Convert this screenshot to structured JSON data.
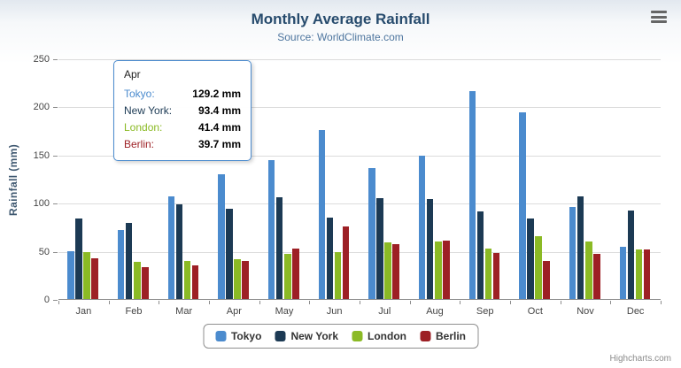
{
  "chart_data": {
    "type": "bar",
    "title": "Monthly Average Rainfall",
    "subtitle": "Source: WorldClimate.com",
    "categories": [
      "Jan",
      "Feb",
      "Mar",
      "Apr",
      "May",
      "Jun",
      "Jul",
      "Aug",
      "Sep",
      "Oct",
      "Nov",
      "Dec"
    ],
    "series": [
      {
        "name": "Tokyo",
        "color": "#4b8bce",
        "values": [
          49.9,
          71.5,
          106.4,
          129.2,
          144.0,
          176.0,
          135.6,
          148.5,
          216.4,
          194.1,
          95.6,
          54.4
        ]
      },
      {
        "name": "New York",
        "color": "#1c3a54",
        "values": [
          83.6,
          78.8,
          98.5,
          93.4,
          106.0,
          84.5,
          105.0,
          104.3,
          91.2,
          83.5,
          106.6,
          92.3
        ]
      },
      {
        "name": "London",
        "color": "#8bba25",
        "values": [
          48.9,
          38.8,
          39.3,
          41.4,
          47.0,
          48.3,
          59.0,
          59.6,
          52.4,
          65.2,
          59.3,
          51.2
        ]
      },
      {
        "name": "Berlin",
        "color": "#9d2025",
        "values": [
          42.4,
          33.2,
          34.5,
          39.7,
          52.6,
          75.5,
          57.4,
          60.4,
          47.6,
          39.1,
          46.8,
          51.1
        ]
      }
    ],
    "ylabel": "Rainfall (mm)",
    "ylim": [
      0,
      250
    ],
    "ytick_interval": 50,
    "grid": true,
    "legend_position": "bottom"
  },
  "tooltip": {
    "category": "Apr",
    "border_color": "#4b8bce",
    "rows": [
      {
        "label": "Tokyo:",
        "value": "129.2 mm"
      },
      {
        "label": "New York:",
        "value": "93.4 mm"
      },
      {
        "label": "London:",
        "value": "41.4 mm"
      },
      {
        "label": "Berlin:",
        "value": "39.7 mm"
      }
    ]
  },
  "credits": {
    "label": "Highcharts.com"
  }
}
